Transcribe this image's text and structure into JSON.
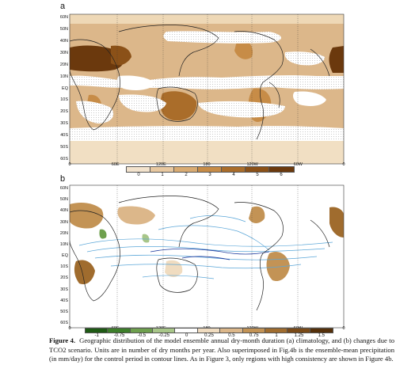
{
  "panels": [
    {
      "letter": "a",
      "lat_labels": [
        "60N",
        "50N",
        "40N",
        "30N",
        "20N",
        "10N",
        "EQ",
        "10S",
        "20S",
        "30S",
        "40S",
        "50S",
        "60S"
      ],
      "lon_labels": [
        "0",
        "60E",
        "120E",
        "180",
        "120W",
        "60W",
        "0"
      ],
      "colorbar": {
        "colors": [
          "#f3e3cd",
          "#e8c8a0",
          "#d9ab72",
          "#c78c47",
          "#aa6d2a",
          "#8b5118",
          "#6b390d"
        ],
        "tick_labels": [
          "0",
          "1",
          "2",
          "3",
          "4",
          "5",
          "6"
        ]
      }
    },
    {
      "letter": "b",
      "lat_labels": [
        "60N",
        "50N",
        "40N",
        "30N",
        "20N",
        "10N",
        "EQ",
        "10S",
        "20S",
        "30S",
        "40S",
        "50S",
        "60S"
      ],
      "lon_labels": [
        "0",
        "60E",
        "120E",
        "180",
        "120W",
        "60W",
        "0"
      ],
      "colorbar": {
        "colors": [
          "#1e5a14",
          "#3d7f2a",
          "#6ea04e",
          "#a8c689",
          "#ffffff",
          "#f0dcc0",
          "#dcb78a",
          "#c39355",
          "#a06c2e",
          "#7a4a17",
          "#55300a"
        ],
        "tick_labels": [
          "-1",
          "-0.75",
          "-0.5",
          "-0.25",
          "0",
          "0.25",
          "0.5",
          "0.75",
          "1",
          "1.25",
          "1.5"
        ]
      }
    }
  ],
  "caption": {
    "label": "Figure 4.",
    "text": "Geographic distribution of the model ensemble annual dry-month duration (a) climatology, and (b) changes due to TCO2 scenario. Units are in number of dry months per year. Also superimposed in Fig.4b is the ensemble-mean precipitation (in mm/day) for the control period in contour lines. As in Figure 3, only regions with high consistency are shown in Figure 4b."
  }
}
